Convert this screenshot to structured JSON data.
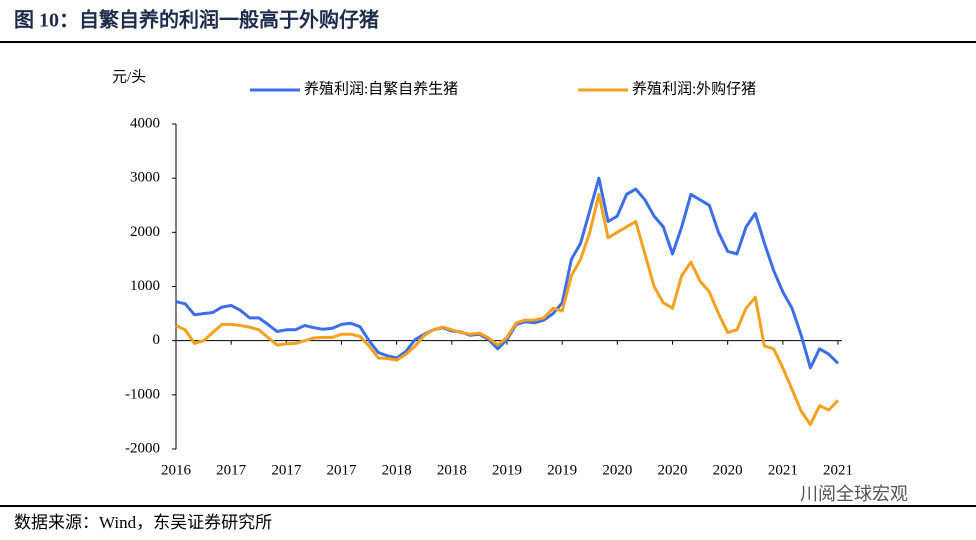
{
  "chart_data": {
    "type": "line",
    "title": "图 10：自繁自养的利润一般高于外购仔猪",
    "y_label": "元/头",
    "source": "数据来源：Wind，东吴证券研究所",
    "watermark": "川阅全球宏观",
    "categories": [
      "2016",
      null,
      null,
      null,
      null,
      null,
      "2017",
      null,
      null,
      null,
      null,
      null,
      "2017",
      null,
      null,
      null,
      null,
      null,
      "2017",
      null,
      null,
      null,
      null,
      null,
      "2018",
      null,
      null,
      null,
      null,
      null,
      "2018",
      null,
      null,
      null,
      null,
      null,
      "2019",
      null,
      null,
      null,
      null,
      null,
      "2019",
      null,
      null,
      null,
      null,
      null,
      "2020",
      null,
      null,
      null,
      null,
      null,
      "2020",
      null,
      null,
      null,
      null,
      null,
      "2020",
      null,
      null,
      null,
      null,
      null,
      "2021",
      null,
      null,
      null,
      null,
      null,
      "2021"
    ],
    "series": [
      {
        "name": "养殖利润:自繁自养生猪",
        "color": "#3b6ee8",
        "values": [
          720,
          680,
          480,
          500,
          520,
          620,
          650,
          560,
          420,
          420,
          300,
          170,
          200,
          200,
          280,
          240,
          210,
          230,
          300,
          320,
          260,
          0,
          -220,
          -280,
          -320,
          -200,
          20,
          120,
          200,
          240,
          180,
          160,
          100,
          120,
          20,
          -150,
          20,
          300,
          350,
          330,
          380,
          500,
          700,
          1500,
          1800,
          2400,
          3000,
          2200,
          2300,
          2700,
          2800,
          2600,
          2300,
          2100,
          1600,
          2100,
          2700,
          2600,
          2500,
          2000,
          1650,
          1600,
          2100,
          2350,
          1800,
          1300,
          900,
          600,
          100,
          -500,
          -150,
          -250,
          -420
        ]
      },
      {
        "name": "养殖利润:外购仔猪",
        "color": "#f5a01e",
        "values": [
          280,
          200,
          -50,
          0,
          150,
          300,
          300,
          280,
          250,
          200,
          60,
          -80,
          -60,
          -50,
          0,
          50,
          60,
          60,
          120,
          120,
          80,
          -100,
          -320,
          -330,
          -360,
          -250,
          -100,
          100,
          200,
          250,
          200,
          150,
          120,
          140,
          50,
          -80,
          60,
          330,
          380,
          380,
          420,
          600,
          550,
          1200,
          1500,
          2000,
          2700,
          1900,
          2000,
          2100,
          2200,
          1600,
          1000,
          700,
          600,
          1200,
          1450,
          1100,
          900,
          500,
          150,
          200,
          600,
          800,
          -100,
          -150,
          -500,
          -900,
          -1300,
          -1550,
          -1200,
          -1280,
          -1100
        ]
      }
    ],
    "ylim": [
      -2000,
      4000
    ],
    "yticks": [
      -2000,
      -1000,
      0,
      1000,
      2000,
      3000,
      4000
    ]
  }
}
